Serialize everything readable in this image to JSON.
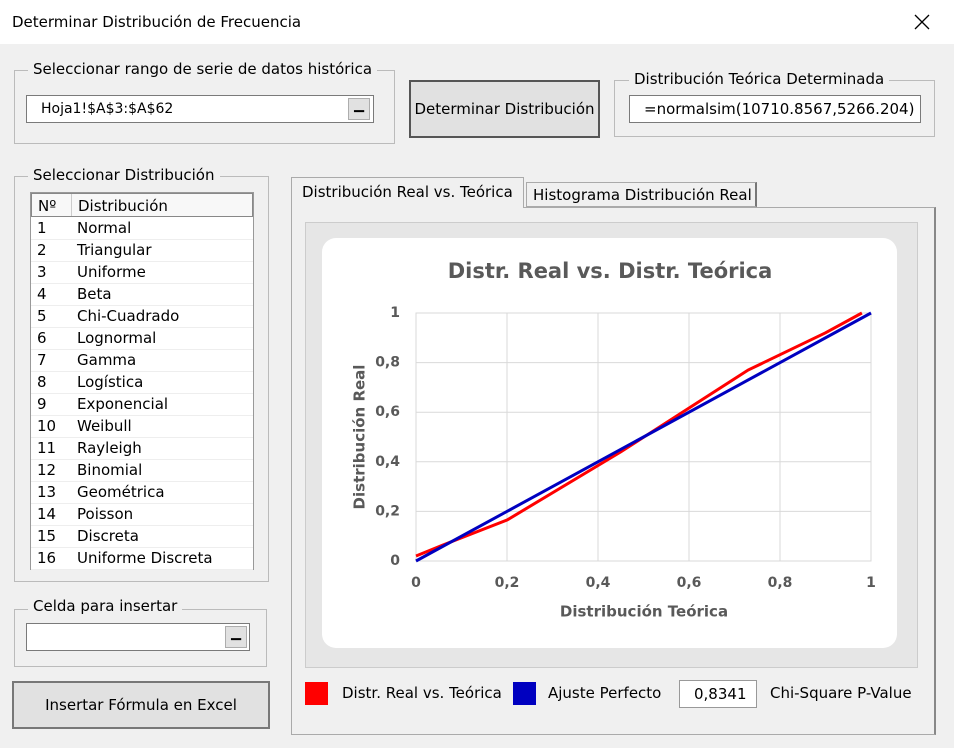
{
  "window": {
    "title": "Determinar Distribución de Frecuencia"
  },
  "range_group": {
    "label": "Seleccionar rango de serie de datos histórica",
    "value": "Hoja1!$A$3:$A$62"
  },
  "determine_button": "Determinar Distribución",
  "result_group": {
    "label": "Distribución Teórica Determinada",
    "value": "=normalsim(10710.8567,5266.204)"
  },
  "distribution_group": {
    "label": "Seleccionar Distribución",
    "table": {
      "headers": [
        "Nº",
        "Distribución"
      ],
      "rows": [
        [
          "1",
          "Normal"
        ],
        [
          "2",
          "Triangular"
        ],
        [
          "3",
          "Uniforme"
        ],
        [
          "4",
          "Beta"
        ],
        [
          "5",
          "Chi-Cuadrado"
        ],
        [
          "6",
          "Lognormal"
        ],
        [
          "7",
          "Gamma"
        ],
        [
          "8",
          "Logística"
        ],
        [
          "9",
          "Exponencial"
        ],
        [
          "10",
          "Weibull"
        ],
        [
          "11",
          "Rayleigh"
        ],
        [
          "12",
          "Binomial"
        ],
        [
          "13",
          "Geométrica"
        ],
        [
          "14",
          "Poisson"
        ],
        [
          "15",
          "Discreta"
        ],
        [
          "16",
          "Uniforme Discreta"
        ]
      ]
    }
  },
  "insert_group": {
    "label": "Celda para insertar"
  },
  "insert_button": "Insertar Fórmula en Excel",
  "tabs": [
    "Distribución Real vs. Teórica",
    "Histograma Distribución Real"
  ],
  "chart_data": {
    "type": "line",
    "title": "Distr. Real vs. Distr. Teórica",
    "x_label": "Distribución Teórica",
    "y_label": "Distribución Real",
    "xlim": [
      0,
      1
    ],
    "ylim": [
      0,
      1
    ],
    "xticks": [
      0,
      {
        "value": 0.2,
        "label": "0,2"
      },
      {
        "value": 0.4,
        "label": "0,4"
      },
      {
        "value": 0.6,
        "label": "0,6"
      },
      {
        "value": 0.8,
        "label": "0,8"
      },
      1
    ],
    "yticks": [
      0,
      {
        "value": 0.2,
        "label": "0,2"
      },
      {
        "value": 0.4,
        "label": "0,4"
      },
      {
        "value": 0.6,
        "label": "0,6"
      },
      {
        "value": 0.8,
        "label": "0,8"
      },
      1
    ],
    "grid": true,
    "series": [
      {
        "name": "Distr. Real vs. Teórica",
        "color": "#ff0000",
        "x": [
          0,
          0.06,
          0.2,
          0.45,
          0.73,
          0.9,
          0.98
        ],
        "values": [
          0.02,
          0.065,
          0.165,
          0.44,
          0.77,
          0.92,
          1.0
        ]
      },
      {
        "name": "Ajuste Perfecto",
        "color": "#0000c0",
        "x": [
          0,
          1
        ],
        "values": [
          0,
          1
        ]
      }
    ]
  },
  "p_value": {
    "value": "0,8341",
    "label": "Chi-Square P-Value"
  }
}
